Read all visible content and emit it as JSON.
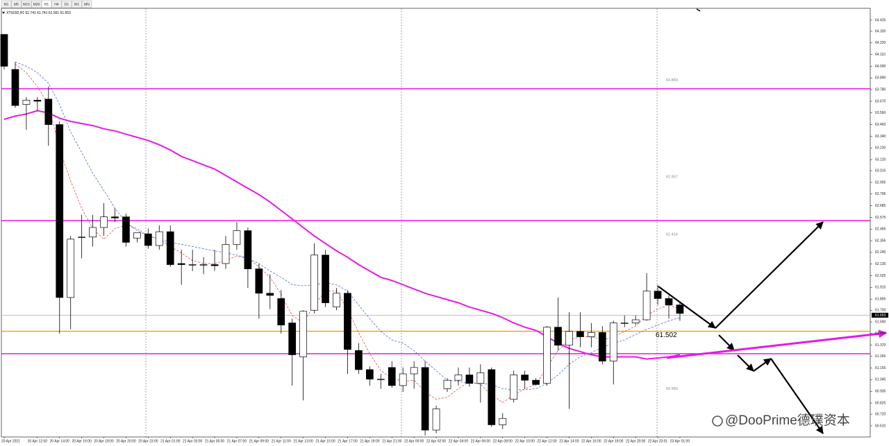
{
  "toolbar": [
    "M1",
    "M5",
    "M15",
    "M30",
    "H1",
    "H4",
    "D1",
    "W1",
    "MN"
  ],
  "symbol_info": "XTIUSD,H1  61.741 61.741 61.561 61.653",
  "watermark": "@DooPrime德璞资本",
  "chart_data": {
    "type": "candlestick",
    "categories": [
      "20 Apr 2021",
      null,
      null,
      "20 Apr 12:00",
      null,
      "20 Apr 14:00",
      null,
      "20 Apr 16:00",
      null,
      "20 Apr 18:00",
      null,
      "20 Apr 20:00",
      null,
      "20 Apr 23:00",
      null,
      "21 Apr 01:00",
      null,
      "21 Apr 03:00",
      null,
      "21 Apr 05:00",
      null,
      "21 Apr 07:00",
      null,
      "21 Apr 09:00",
      null,
      "21 Apr 11:00",
      null,
      "21 Apr 13:00",
      null,
      "21 Apr 15:00",
      null,
      "21 Apr 17:00",
      null,
      "21 Apr 19:00",
      null,
      "21 Apr 21:00",
      null,
      "22 Apr 00:00",
      null,
      "22 Apr 02:00",
      null,
      "22 Apr 04:00",
      null,
      "22 Apr 06:00",
      null,
      "22 Apr 08:00",
      null,
      "22 Apr 10:00",
      null,
      "22 Apr 12:00",
      null,
      "22 Apr 14:00",
      null,
      "22 Apr 16:00",
      null,
      "22 Apr 18:00",
      null,
      "22 Apr 20:00",
      null,
      "22 Apr 23:01",
      null,
      "23 Apr 01:00"
    ],
    "open": [
      64.3,
      63.97,
      63.64,
      63.68,
      63.69,
      63.45,
      61.82,
      62.39,
      62.39,
      62.48,
      62.58,
      62.58,
      62.38,
      62.42,
      62.31,
      62.44,
      62.14,
      62.13,
      62.13,
      62.13,
      62.14,
      62.32,
      62.45,
      62.09,
      61.86,
      61.81,
      61.58,
      61.26,
      61.7,
      62.22,
      61.73,
      61.86,
      61.32,
      61.14,
      61.05,
      61.16,
      60.99,
      61.1,
      61.16,
      60.57,
      60.96,
      61.04,
      61.09,
      61.01,
      61.14,
      60.62,
      60.86,
      61.09,
      61.04,
      61.01,
      61.54,
      61.37,
      61.5,
      61.45,
      61.49,
      61.22,
      61.58,
      61.58,
      61.61,
      61.88,
      61.81,
      61.75
    ],
    "high": [
      64.3,
      64.04,
      63.71,
      63.71,
      63.81,
      63.48,
      62.4,
      62.6,
      62.6,
      62.71,
      62.66,
      62.61,
      62.43,
      62.47,
      62.5,
      62.5,
      62.27,
      62.27,
      62.2,
      62.27,
      62.4,
      62.53,
      62.48,
      62.14,
      62.04,
      61.89,
      61.62,
      61.7,
      62.33,
      62.27,
      61.91,
      61.89,
      61.39,
      61.17,
      61.1,
      61.22,
      61.16,
      61.22,
      61.22,
      60.8,
      61.06,
      61.16,
      61.16,
      61.19,
      61.16,
      60.73,
      61.13,
      61.13,
      61.06,
      61.55,
      61.82,
      61.68,
      61.68,
      61.58,
      61.55,
      61.6,
      61.65,
      61.65,
      62.05,
      61.94,
      61.84,
      61.78
    ],
    "low": [
      63.97,
      63.61,
      63.4,
      63.58,
      63.25,
      61.48,
      61.52,
      62.19,
      62.3,
      62.4,
      62.53,
      62.3,
      62.34,
      62.28,
      62.27,
      62.11,
      61.94,
      62.07,
      62.04,
      62.07,
      62.09,
      62.27,
      61.91,
      61.62,
      61.71,
      61.48,
      60.99,
      60.85,
      61.67,
      61.73,
      61.7,
      61.1,
      61.1,
      60.99,
      60.96,
      60.97,
      60.93,
      60.96,
      60.52,
      60.54,
      60.93,
      60.99,
      60.98,
      60.83,
      60.6,
      60.58,
      60.83,
      60.96,
      60.99,
      60.99,
      61.32,
      60.77,
      61.35,
      61.35,
      61.19,
      61.0,
      61.54,
      61.56,
      61.6,
      61.75,
      61.62,
      61.6
    ],
    "close": [
      64.0,
      63.63,
      63.68,
      63.67,
      63.45,
      61.82,
      62.37,
      62.39,
      62.48,
      62.58,
      62.57,
      62.34,
      62.43,
      62.31,
      62.44,
      62.13,
      62.13,
      62.13,
      62.13,
      62.12,
      62.32,
      62.45,
      62.09,
      61.86,
      61.84,
      61.56,
      61.28,
      61.69,
      62.22,
      61.77,
      61.86,
      61.33,
      61.14,
      61.05,
      61.05,
      60.99,
      61.1,
      61.16,
      60.57,
      60.77,
      61.04,
      61.09,
      61.01,
      61.11,
      60.62,
      60.68,
      61.09,
      61.04,
      61.0,
      61.54,
      61.37,
      61.5,
      61.45,
      61.49,
      61.22,
      61.58,
      61.58,
      61.61,
      61.88,
      61.81,
      61.75,
      61.67
    ],
    "up_color": "#ffffff",
    "down_color": "#000000",
    "overlays": [
      {
        "color": "#e619e6",
        "style": "solid",
        "values": [
          63.5,
          63.53,
          63.55,
          63.58,
          63.56,
          63.51,
          63.48,
          63.46,
          63.44,
          63.41,
          63.39,
          63.36,
          63.33,
          63.3,
          63.26,
          63.21,
          63.15,
          63.11,
          63.07,
          63.03,
          62.97,
          62.91,
          62.85,
          62.79,
          62.72,
          62.64,
          62.56,
          62.48,
          62.4,
          62.33,
          62.26,
          62.2,
          62.13,
          62.07,
          62.01,
          61.98,
          61.94,
          61.9,
          61.86,
          61.83,
          61.8,
          61.77,
          61.73,
          61.7,
          61.67,
          61.63,
          61.58,
          61.54,
          61.51,
          61.45,
          61.39,
          61.34,
          61.31,
          61.28,
          61.26,
          61.26,
          61.26,
          61.26,
          61.24,
          61.25,
          61.26,
          61.28
        ]
      },
      {
        "color": "#e03030",
        "style": "dashed",
        "values": [
          null,
          64.02,
          63.94,
          63.81,
          63.64,
          63.22,
          62.92,
          62.66,
          62.47,
          62.37,
          62.47,
          62.5,
          62.47,
          62.4,
          62.37,
          62.3,
          62.24,
          62.17,
          62.14,
          62.14,
          62.17,
          62.21,
          62.19,
          62.11,
          62.01,
          61.85,
          61.65,
          61.58,
          61.75,
          61.88,
          61.88,
          61.71,
          61.49,
          61.29,
          61.13,
          61.06,
          61.03,
          61.04,
          60.93,
          60.86,
          60.88,
          60.96,
          61.03,
          61.0,
          60.9,
          60.83,
          60.9,
          60.96,
          61.0,
          61.16,
          61.32,
          61.42,
          61.45,
          61.45,
          61.42,
          61.45,
          61.5,
          61.55,
          61.65,
          61.71,
          61.75,
          61.71
        ]
      },
      {
        "color": "#3050e0",
        "style": "dashed",
        "values": [
          null,
          64.04,
          64.0,
          63.94,
          63.84,
          63.64,
          63.38,
          63.19,
          62.99,
          62.83,
          62.66,
          62.53,
          62.45,
          62.4,
          62.37,
          62.34,
          62.32,
          62.3,
          62.28,
          62.26,
          62.24,
          62.22,
          62.19,
          62.14,
          62.07,
          62.01,
          61.94,
          61.93,
          61.94,
          61.96,
          61.94,
          61.88,
          61.75,
          61.62,
          61.5,
          61.42,
          61.39,
          61.32,
          61.22,
          61.13,
          61.04,
          61.03,
          61.01,
          61.01,
          61.0,
          60.96,
          60.95,
          60.95,
          60.96,
          61.01,
          61.09,
          61.19,
          61.26,
          61.3,
          61.35,
          61.39,
          61.42,
          61.47,
          61.52,
          61.56,
          61.6,
          61.63
        ]
      }
    ],
    "hlines": [
      {
        "value": 63.788,
        "color": "#e600e6",
        "show_label": false
      },
      {
        "value": 62.545,
        "color": "#e600e6",
        "show_label": false
      },
      {
        "value": 61.29,
        "color": "#e600e6",
        "show_label": false
      },
      {
        "value": 61.502,
        "color": "#ff9900",
        "show_label": true
      },
      {
        "value": 61.653,
        "color": "#9a9a9a",
        "show_label": false
      }
    ],
    "level_labels": [
      63.869,
      62.957,
      62.414,
      60.959
    ],
    "current_price": 61.653,
    "ylim": [
      60.505,
      64.546
    ],
    "yticks": [
      64.435,
      {
        "value": 64.33,
        "label": "64.330"
      },
      {
        "value": 64.22,
        "label": "64.220"
      },
      {
        "value": 64.11,
        "label": "64.110"
      },
      {
        "value": 64,
        "label": "64.000"
      },
      {
        "value": 63.89,
        "label": "63.890"
      },
      {
        "value": 63.78,
        "label": "63.780"
      },
      {
        "value": 63.67,
        "label": "63.670"
      },
      {
        "value": 63.56,
        "label": "63.560"
      },
      {
        "value": 63.45,
        "label": "63.450"
      },
      {
        "value": 63.34,
        "label": "63.340"
      },
      {
        "value": 63.23,
        "label": "63.230"
      },
      {
        "value": 63.12,
        "label": "63.120"
      },
      63.015,
      62.905,
      62.795,
      62.685,
      62.575,
      62.465,
      62.355,
      62.245,
      62.135,
      62.025,
      61.915,
      61.805,
      {
        "value": 61.7,
        "label": "61.700"
      },
      {
        "value": 61.59,
        "label": "61.590"
      },
      {
        "value": 61.48,
        "label": "61.480"
      },
      {
        "value": 61.37,
        "label": "61.370"
      },
      61.265,
      61.155,
      61.045,
      60.935,
      60.825,
      {
        "value": 60.72,
        "label": "60.720"
      },
      {
        "value": 60.61,
        "label": "60.610"
      }
    ]
  }
}
